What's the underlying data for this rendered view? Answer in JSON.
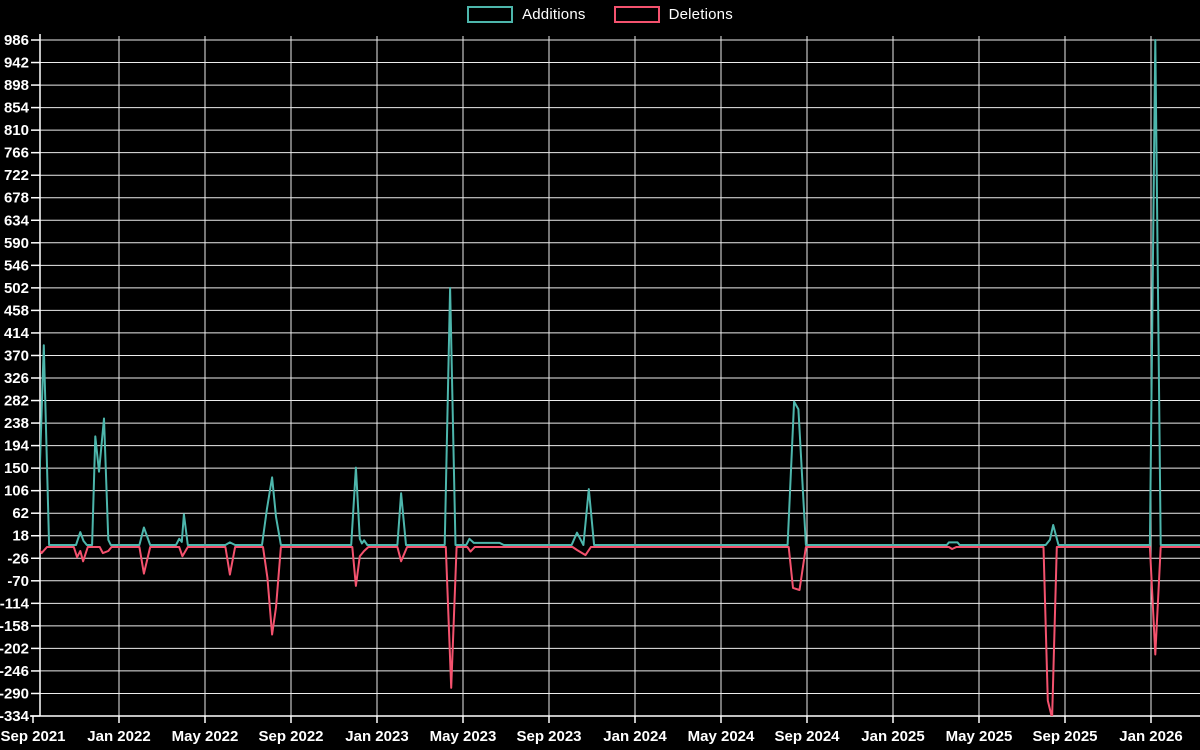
{
  "legend": {
    "additions_label": "Additions",
    "deletions_label": "Deletions"
  },
  "colors": {
    "background": "#000000",
    "additions": "#4db6ac",
    "deletions": "#f4526e",
    "grid": "#ececec",
    "axis": "#ffffff",
    "text": "#ffffff"
  },
  "chart_data": {
    "type": "line",
    "title": "",
    "xlabel": "",
    "ylabel": "",
    "grid": true,
    "legend_position": "top-center",
    "ylim": [
      -334,
      986
    ],
    "y_ticks": [
      986,
      942,
      898,
      854,
      810,
      766,
      722,
      678,
      634,
      590,
      546,
      502,
      458,
      414,
      370,
      326,
      282,
      238,
      194,
      150,
      106,
      62,
      18,
      -26,
      -70,
      -114,
      -158,
      -202,
      -246,
      -290,
      -334
    ],
    "x_ticks": [
      {
        "t": 0,
        "label": "Sep 2021"
      },
      {
        "t": 4,
        "label": "Jan 2022"
      },
      {
        "t": 8,
        "label": "May 2022"
      },
      {
        "t": 12,
        "label": "Sep 2022"
      },
      {
        "t": 16,
        "label": "Jan 2023"
      },
      {
        "t": 20,
        "label": "May 2023"
      },
      {
        "t": 24,
        "label": "Sep 2023"
      },
      {
        "t": 28,
        "label": "Jan 2024"
      },
      {
        "t": 32,
        "label": "May 2024"
      },
      {
        "t": 36,
        "label": "Sep 2024"
      },
      {
        "t": 40,
        "label": "Jan 2025"
      },
      {
        "t": 44,
        "label": "May 2025"
      },
      {
        "t": 48,
        "label": "Sep 2025"
      },
      {
        "t": 52,
        "label": "Jan 2026"
      }
    ],
    "x_unit": "months since Sep 2021 (weekly data)",
    "series": [
      {
        "name": "Additions",
        "color": "#4db6ac",
        "points": [
          [
            0.2,
            0
          ],
          [
            0.5,
            390
          ],
          [
            0.75,
            0
          ],
          [
            2.0,
            0
          ],
          [
            2.2,
            25
          ],
          [
            2.35,
            8
          ],
          [
            2.5,
            0
          ],
          [
            2.75,
            0
          ],
          [
            2.9,
            212
          ],
          [
            3.07,
            143
          ],
          [
            3.3,
            247
          ],
          [
            3.5,
            10
          ],
          [
            3.62,
            0
          ],
          [
            4.95,
            0
          ],
          [
            5.16,
            34
          ],
          [
            5.45,
            0
          ],
          [
            6.65,
            0
          ],
          [
            6.8,
            12
          ],
          [
            6.92,
            6
          ],
          [
            7.02,
            60
          ],
          [
            7.2,
            0
          ],
          [
            8.95,
            0
          ],
          [
            9.16,
            5
          ],
          [
            9.4,
            0
          ],
          [
            10.65,
            0
          ],
          [
            10.88,
            70
          ],
          [
            11.12,
            132
          ],
          [
            11.3,
            55
          ],
          [
            11.53,
            0
          ],
          [
            14.8,
            0
          ],
          [
            15.02,
            151
          ],
          [
            15.2,
            12
          ],
          [
            15.3,
            3
          ],
          [
            15.4,
            9
          ],
          [
            15.55,
            0
          ],
          [
            16.95,
            0
          ],
          [
            17.12,
            101
          ],
          [
            17.35,
            0
          ],
          [
            19.15,
            0
          ],
          [
            19.4,
            502
          ],
          [
            19.65,
            0
          ],
          [
            20.15,
            0
          ],
          [
            20.3,
            12
          ],
          [
            20.5,
            4
          ],
          [
            21.7,
            4
          ],
          [
            21.9,
            0
          ],
          [
            25.05,
            0
          ],
          [
            25.3,
            24
          ],
          [
            25.6,
            0
          ],
          [
            25.85,
            109
          ],
          [
            26.1,
            0
          ],
          [
            35.1,
            0
          ],
          [
            35.4,
            280
          ],
          [
            35.6,
            265
          ],
          [
            35.95,
            0
          ],
          [
            42.5,
            0
          ],
          [
            42.6,
            5
          ],
          [
            43.0,
            5
          ],
          [
            43.1,
            0
          ],
          [
            47.1,
            0
          ],
          [
            47.3,
            10
          ],
          [
            47.45,
            39
          ],
          [
            47.7,
            0
          ],
          [
            51.95,
            0
          ],
          [
            52.2,
            986
          ],
          [
            52.45,
            0
          ],
          [
            54.3,
            0
          ]
        ]
      },
      {
        "name": "Deletions",
        "color": "#f4526e",
        "points": [
          [
            0.2,
            0
          ],
          [
            0.4,
            -12
          ],
          [
            0.65,
            0
          ],
          [
            1.9,
            0
          ],
          [
            2.05,
            -20
          ],
          [
            2.2,
            -8
          ],
          [
            2.33,
            -28
          ],
          [
            2.55,
            0
          ],
          [
            3.1,
            0
          ],
          [
            3.25,
            -12
          ],
          [
            3.5,
            -8
          ],
          [
            3.65,
            0
          ],
          [
            4.95,
            0
          ],
          [
            5.16,
            -52
          ],
          [
            5.45,
            0
          ],
          [
            6.8,
            0
          ],
          [
            6.95,
            -18
          ],
          [
            7.2,
            0
          ],
          [
            8.95,
            0
          ],
          [
            9.16,
            -54
          ],
          [
            9.4,
            0
          ],
          [
            10.7,
            0
          ],
          [
            10.9,
            -60
          ],
          [
            11.12,
            -171
          ],
          [
            11.3,
            -118
          ],
          [
            11.53,
            0
          ],
          [
            14.85,
            0
          ],
          [
            15.02,
            -76
          ],
          [
            15.2,
            -18
          ],
          [
            15.4,
            -8
          ],
          [
            15.6,
            0
          ],
          [
            16.95,
            0
          ],
          [
            17.12,
            -28
          ],
          [
            17.4,
            0
          ],
          [
            19.2,
            0
          ],
          [
            19.45,
            -275
          ],
          [
            19.7,
            0
          ],
          [
            20.2,
            0
          ],
          [
            20.35,
            -9
          ],
          [
            20.55,
            0
          ],
          [
            25.1,
            0
          ],
          [
            25.3,
            -6
          ],
          [
            25.7,
            -16
          ],
          [
            25.95,
            0
          ],
          [
            35.15,
            0
          ],
          [
            35.35,
            -80
          ],
          [
            35.65,
            -84
          ],
          [
            35.95,
            0
          ],
          [
            42.6,
            0
          ],
          [
            42.75,
            -4
          ],
          [
            42.95,
            0
          ],
          [
            47.0,
            0
          ],
          [
            47.2,
            -300
          ],
          [
            47.4,
            -334
          ],
          [
            47.62,
            0
          ],
          [
            51.95,
            0
          ],
          [
            52.05,
            -85
          ],
          [
            52.2,
            -210
          ],
          [
            52.45,
            0
          ],
          [
            54.3,
            0
          ]
        ]
      }
    ]
  }
}
